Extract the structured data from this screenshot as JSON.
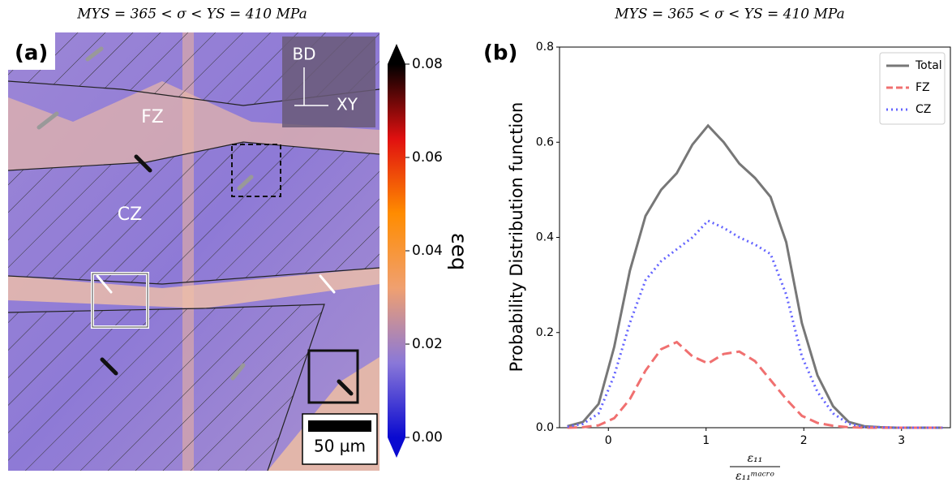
{
  "chart_data": [
    {
      "type": "image-map",
      "title": "MYS = 365 < σ < YS = 410 MPa",
      "panel_label": "(a)",
      "annotations": [
        "BD",
        "XY",
        "FZ",
        "CZ"
      ],
      "scale_bar": "50 µm",
      "colorbar_label": "εeq",
      "clim": [
        0,
        0.08
      ],
      "cticks": [
        {
          "value": 0,
          "label": "0.00"
        },
        {
          "value": 0.02,
          "label": "0.02"
        },
        {
          "value": 0.04,
          "label": "0.04"
        },
        {
          "value": 0.06,
          "label": "0.06"
        },
        {
          "value": 0.08,
          "label": "0.08"
        }
      ],
      "colormap": [
        "#0a0ad0",
        "#8a78d8",
        "#f0a070",
        "#ff8c00",
        "#e01010",
        "#000000"
      ]
    },
    {
      "type": "line",
      "title": "MYS = 365 < σ < YS = 410 MPa",
      "panel_label": "(b)",
      "ylabel": "Probability Distribution function",
      "xlabel_numerator": "ε₁₁",
      "xlabel_denominator": "ε₁₁ᵐᵃᶜʳᵒ",
      "xlim": [
        -0.5,
        3.5
      ],
      "ylim": [
        0,
        0.8
      ],
      "xticks": [
        0,
        1,
        2,
        3
      ],
      "yticks": [
        {
          "value": 0,
          "label": "0.0"
        },
        0.2,
        0.4,
        0.6,
        0.8
      ],
      "legend": "upper right",
      "x": [
        -0.42,
        -0.26,
        -0.1,
        0.06,
        0.22,
        0.38,
        0.54,
        0.7,
        0.86,
        1.02,
        1.18,
        1.34,
        1.5,
        1.66,
        1.82,
        1.98,
        2.14,
        2.3,
        2.46,
        2.62,
        2.78,
        2.94,
        3.1,
        3.26,
        3.42
      ],
      "series": [
        {
          "name": "Total",
          "color": "#777777",
          "dash": "solid",
          "values": [
            0.003,
            0.012,
            0.05,
            0.17,
            0.33,
            0.445,
            0.5,
            0.535,
            0.595,
            0.635,
            0.6,
            0.555,
            0.525,
            0.485,
            0.39,
            0.22,
            0.11,
            0.045,
            0.012,
            0.003,
            0.001,
            0,
            0,
            0,
            0
          ]
        },
        {
          "name": "FZ",
          "color": "#f07070",
          "dash": "dashed",
          "values": [
            0,
            0.001,
            0.005,
            0.02,
            0.06,
            0.12,
            0.165,
            0.18,
            0.15,
            0.135,
            0.155,
            0.16,
            0.14,
            0.1,
            0.06,
            0.025,
            0.01,
            0.004,
            0.001,
            0,
            0,
            0,
            0,
            0,
            0
          ]
        },
        {
          "name": "CZ",
          "color": "#6464ff",
          "dash": "dotted",
          "values": [
            0.002,
            0.008,
            0.03,
            0.11,
            0.22,
            0.31,
            0.35,
            0.375,
            0.4,
            0.435,
            0.42,
            0.4,
            0.385,
            0.365,
            0.28,
            0.15,
            0.075,
            0.03,
            0.008,
            0.002,
            0.001,
            0,
            0,
            0,
            0
          ]
        }
      ]
    }
  ]
}
